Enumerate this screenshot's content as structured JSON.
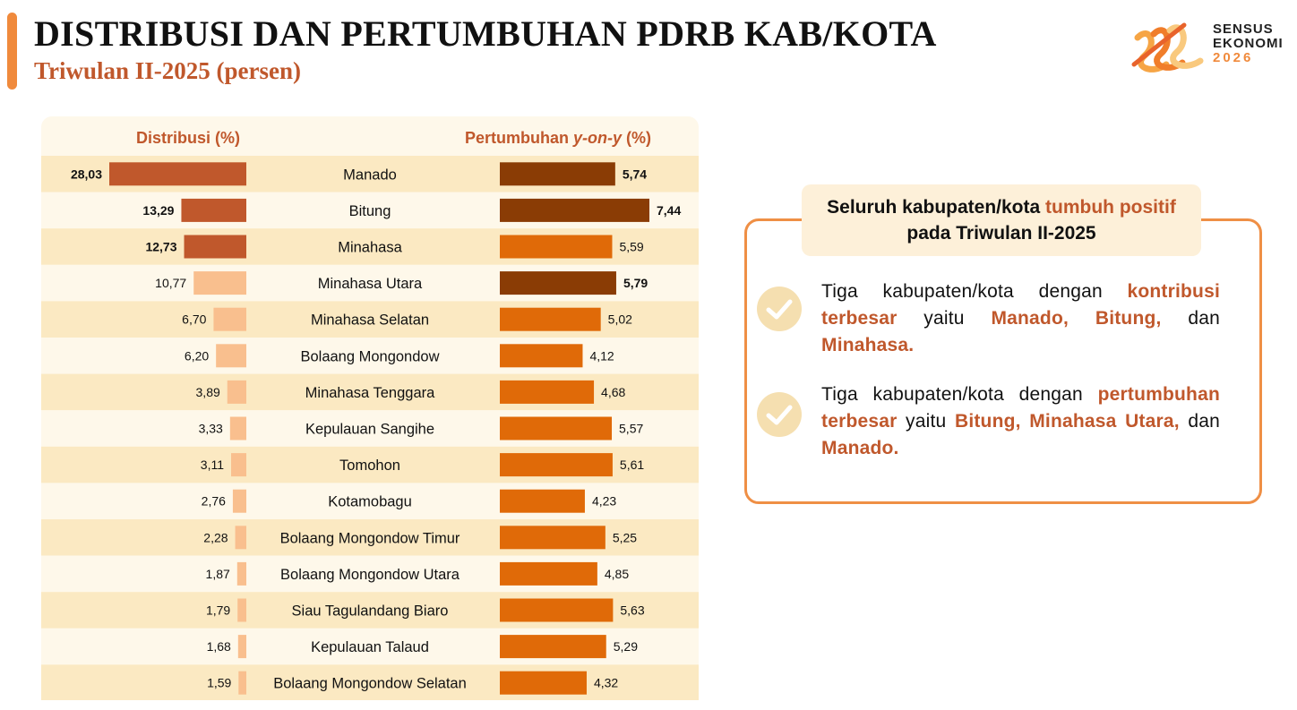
{
  "header": {
    "title": "DISTRIBUSI DAN PERTUMBUHAN PDRB KAB/KOTA",
    "subtitle": "Triwulan II-2025 (persen)"
  },
  "logo": {
    "line1": "SENSUS",
    "line2": "EKONOMI",
    "line3": "2026"
  },
  "colors": {
    "accent": "#f08a3c",
    "subtitle": "#c0582c",
    "dist_top3": "#c0582c",
    "dist_other": "#f9bf8e",
    "grow_top3": "#8a3c05",
    "grow_other": "#e06a08",
    "row_dark": "#fbe9c2",
    "row_light": "#fef8ea",
    "highlight_text": "#c0582c",
    "check": "#f5dfb0"
  },
  "chart_data": {
    "type": "bar",
    "categories": [
      "Manado",
      "Bitung",
      "Minahasa",
      "Minahasa Utara",
      "Minahasa Selatan",
      "Bolaang Mongondow",
      "Minahasa Tenggara",
      "Kepulauan Sangihe",
      "Tomohon",
      "Kotamobagu",
      "Bolaang Mongondow Timur",
      "Bolaang Mongondow Utara",
      "Siau Tagulandang Biaro",
      "Kepulauan Talaud",
      "Bolaang Mongondow Selatan"
    ],
    "series": [
      {
        "name": "Distribusi (%)",
        "values": [
          28.03,
          13.29,
          12.73,
          10.77,
          6.7,
          6.2,
          3.89,
          3.33,
          3.11,
          2.76,
          2.28,
          1.87,
          1.79,
          1.68,
          1.59
        ],
        "labels": [
          "28,03",
          "13,29",
          "12,73",
          "10,77",
          "6,70",
          "6,20",
          "3,89",
          "3,33",
          "3,11",
          "2,76",
          "2,28",
          "1,87",
          "1,79",
          "1,68",
          "1,59"
        ],
        "highlight": [
          "Manado",
          "Bitung",
          "Minahasa"
        ]
      },
      {
        "name_prefix": "Pertumbuhan ",
        "name_italic": "y-on-y",
        "name_suffix": " (%)",
        "values": [
          5.74,
          7.44,
          5.59,
          5.79,
          5.02,
          4.12,
          4.68,
          5.57,
          5.61,
          4.23,
          5.25,
          4.85,
          5.63,
          5.29,
          4.32
        ],
        "labels": [
          "5,74",
          "7,44",
          "5,59",
          "5,79",
          "5,02",
          "4,12",
          "4,68",
          "5,57",
          "5,61",
          "4,23",
          "5,25",
          "4,85",
          "5,63",
          "5,29",
          "4,32"
        ],
        "highlight": [
          "Bitung",
          "Minahasa Utara",
          "Manado"
        ]
      }
    ]
  },
  "callout": {
    "head_a": "Seluruh kabupaten/kota ",
    "head_b": "tumbuh positif",
    "head_c": " pada Triwulan II-2025",
    "b1_a": "Tiga kabupaten/kota dengan ",
    "b1_b": "kontribusi terbesar",
    "b1_c": " yaitu ",
    "b1_d": "Manado, Bitung,",
    "b1_e": " dan ",
    "b1_f": "Minahasa.",
    "b2_a": "Tiga kabupaten/kota dengan ",
    "b2_b": "pertumbuhan terbesar",
    "b2_c": " yaitu ",
    "b2_d": "Bitung, Minahasa Utara,",
    "b2_e": " dan ",
    "b2_f": "Manado."
  }
}
